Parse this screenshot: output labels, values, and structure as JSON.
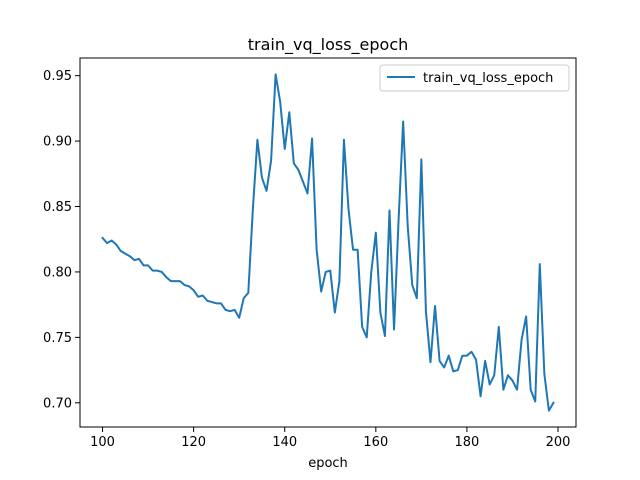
{
  "chart_data": {
    "type": "line",
    "title": "train_vq_loss_epoch",
    "xlabel": "epoch",
    "ylabel": "",
    "xlim": [
      95.05,
      203.95
    ],
    "ylim": [
      0.6815,
      0.9635
    ],
    "xticks": [
      100,
      120,
      140,
      160,
      180,
      200
    ],
    "yticks": [
      0.7,
      0.75,
      0.8,
      0.85,
      0.9,
      0.95
    ],
    "ytick_labels": [
      "0.70",
      "0.75",
      "0.80",
      "0.85",
      "0.90",
      "0.95"
    ],
    "xtick_labels": [
      "100",
      "120",
      "140",
      "160",
      "180",
      "200"
    ],
    "legend": {
      "position": "upper right"
    },
    "grid": false,
    "series": [
      {
        "name": "train_vq_loss_epoch",
        "color": "#1f77b4",
        "x": [
          100,
          101,
          102,
          103,
          104,
          105,
          106,
          107,
          108,
          109,
          110,
          111,
          112,
          113,
          114,
          115,
          116,
          117,
          118,
          119,
          120,
          121,
          122,
          123,
          124,
          125,
          126,
          127,
          128,
          129,
          130,
          131,
          132,
          133,
          134,
          135,
          136,
          137,
          138,
          139,
          140,
          141,
          142,
          143,
          144,
          145,
          146,
          147,
          148,
          149,
          150,
          151,
          152,
          153,
          154,
          155,
          156,
          157,
          158,
          159,
          160,
          161,
          162,
          163,
          164,
          165,
          166,
          167,
          168,
          169,
          170,
          171,
          172,
          173,
          174,
          175,
          176,
          177,
          178,
          179,
          180,
          181,
          182,
          183,
          184,
          185,
          186,
          187,
          188,
          189,
          190,
          191,
          192,
          193,
          194,
          195,
          196,
          197,
          198,
          199
        ],
        "y": [
          0.826,
          0.822,
          0.824,
          0.821,
          0.816,
          0.814,
          0.812,
          0.809,
          0.81,
          0.805,
          0.805,
          0.801,
          0.801,
          0.8,
          0.796,
          0.793,
          0.793,
          0.793,
          0.79,
          0.789,
          0.786,
          0.781,
          0.782,
          0.778,
          0.777,
          0.776,
          0.776,
          0.771,
          0.77,
          0.771,
          0.765,
          0.78,
          0.784,
          0.848,
          0.901,
          0.872,
          0.862,
          0.885,
          0.951,
          0.93,
          0.894,
          0.922,
          0.883,
          0.878,
          0.869,
          0.86,
          0.902,
          0.817,
          0.785,
          0.8,
          0.801,
          0.769,
          0.793,
          0.901,
          0.848,
          0.817,
          0.817,
          0.758,
          0.75,
          0.8,
          0.83,
          0.769,
          0.751,
          0.847,
          0.756,
          0.84,
          0.915,
          0.835,
          0.79,
          0.78,
          0.886,
          0.77,
          0.731,
          0.774,
          0.732,
          0.727,
          0.736,
          0.724,
          0.725,
          0.736,
          0.736,
          0.739,
          0.733,
          0.705,
          0.732,
          0.714,
          0.721,
          0.758,
          0.71,
          0.721,
          0.717,
          0.71,
          0.748,
          0.766,
          0.71,
          0.701,
          0.806,
          0.722,
          0.694,
          0.7
        ]
      }
    ]
  }
}
